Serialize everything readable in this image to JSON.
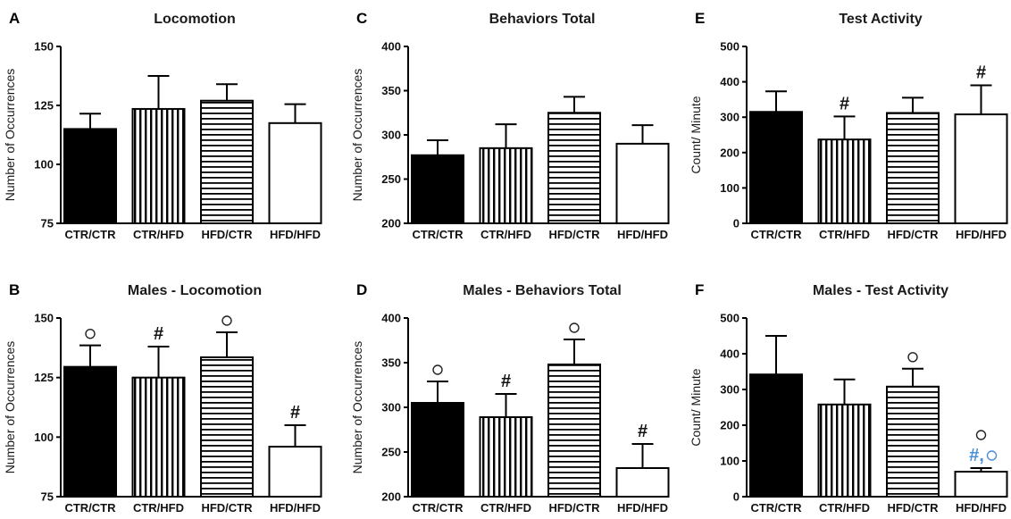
{
  "colors": {
    "text": "#111111",
    "axis": "#000000",
    "bar_stroke": "#000000",
    "annotation_blue": "#4a90d9"
  },
  "chart_data": [
    {
      "letter": "A",
      "title": "Locomotion",
      "type": "bar",
      "ylabel": "Number of Occurrences",
      "ylim": [
        75,
        150
      ],
      "yticks": [
        75,
        100,
        125,
        150
      ],
      "categories": [
        "CTR/CTR",
        "CTR/HFD",
        "HFD/CTR",
        "HFD/HFD"
      ],
      "patterns": [
        "solid",
        "vertical",
        "horizontal",
        "empty"
      ],
      "values": [
        115,
        123.5,
        127,
        117.5
      ],
      "errors": [
        6.5,
        14,
        7,
        8
      ],
      "annotations": [
        [],
        [],
        [],
        []
      ]
    },
    {
      "letter": "C",
      "title": "Behaviors Total",
      "type": "bar",
      "ylabel": "Number of Occurrences",
      "ylim": [
        200,
        400
      ],
      "yticks": [
        200,
        250,
        300,
        350,
        400
      ],
      "categories": [
        "CTR/CTR",
        "CTR/HFD",
        "HFD/CTR",
        "HFD/HFD"
      ],
      "patterns": [
        "solid",
        "vertical",
        "horizontal",
        "empty"
      ],
      "values": [
        277,
        285,
        325,
        290
      ],
      "errors": [
        17,
        27,
        18,
        21
      ],
      "annotations": [
        [],
        [],
        [],
        []
      ]
    },
    {
      "letter": "E",
      "title": "Test Activity",
      "type": "bar",
      "ylabel": "Count/ Minute",
      "ylim": [
        0,
        500
      ],
      "yticks": [
        0,
        100,
        200,
        300,
        400,
        500
      ],
      "categories": [
        "CTR/CTR",
        "CTR/HFD",
        "HFD/CTR",
        "HFD/HFD"
      ],
      "patterns": [
        "solid",
        "vertical",
        "horizontal",
        "empty"
      ],
      "values": [
        315,
        237,
        312,
        308
      ],
      "errors": [
        58,
        65,
        43,
        82
      ],
      "annotations": [
        [],
        [
          "#"
        ],
        [],
        [
          "#"
        ]
      ]
    },
    {
      "letter": "B",
      "title": "Males - Locomotion",
      "type": "bar",
      "ylabel": "Number of Occurrences",
      "ylim": [
        75,
        150
      ],
      "yticks": [
        75,
        100,
        125,
        150
      ],
      "categories": [
        "CTR/CTR",
        "CTR/HFD",
        "HFD/CTR",
        "HFD/HFD"
      ],
      "patterns": [
        "solid",
        "vertical",
        "horizontal",
        "empty"
      ],
      "values": [
        129.5,
        125,
        133.5,
        96
      ],
      "errors": [
        9,
        13,
        10.5,
        9
      ],
      "annotations": [
        [
          "circle"
        ],
        [
          "#"
        ],
        [
          "circle"
        ],
        [
          "#"
        ]
      ]
    },
    {
      "letter": "D",
      "title": "Males - Behaviors Total",
      "type": "bar",
      "ylabel": "Number of Occurrences",
      "ylim": [
        200,
        400
      ],
      "yticks": [
        200,
        250,
        300,
        350,
        400
      ],
      "categories": [
        "CTR/CTR",
        "CTR/HFD",
        "HFD/CTR",
        "HFD/HFD"
      ],
      "patterns": [
        "solid",
        "vertical",
        "horizontal",
        "empty"
      ],
      "values": [
        305,
        289,
        348,
        232
      ],
      "errors": [
        24,
        26,
        28,
        27
      ],
      "annotations": [
        [
          "circle"
        ],
        [
          "#"
        ],
        [
          "circle"
        ],
        [
          "#"
        ]
      ]
    },
    {
      "letter": "F",
      "title": "Males - Test Activity",
      "type": "bar",
      "ylabel": "Count/ Minute",
      "ylim": [
        0,
        500
      ],
      "yticks": [
        0,
        100,
        200,
        300,
        400,
        500
      ],
      "categories": [
        "CTR/CTR",
        "CTR/HFD",
        "HFD/CTR",
        "HFD/HFD"
      ],
      "patterns": [
        "solid",
        "vertical",
        "horizontal",
        "empty"
      ],
      "values": [
        342,
        258,
        308,
        70
      ],
      "errors": [
        108,
        70,
        50,
        10
      ],
      "annotations": [
        [],
        [],
        [
          "circle"
        ],
        [
          "blue#o",
          "circle"
        ]
      ]
    }
  ]
}
